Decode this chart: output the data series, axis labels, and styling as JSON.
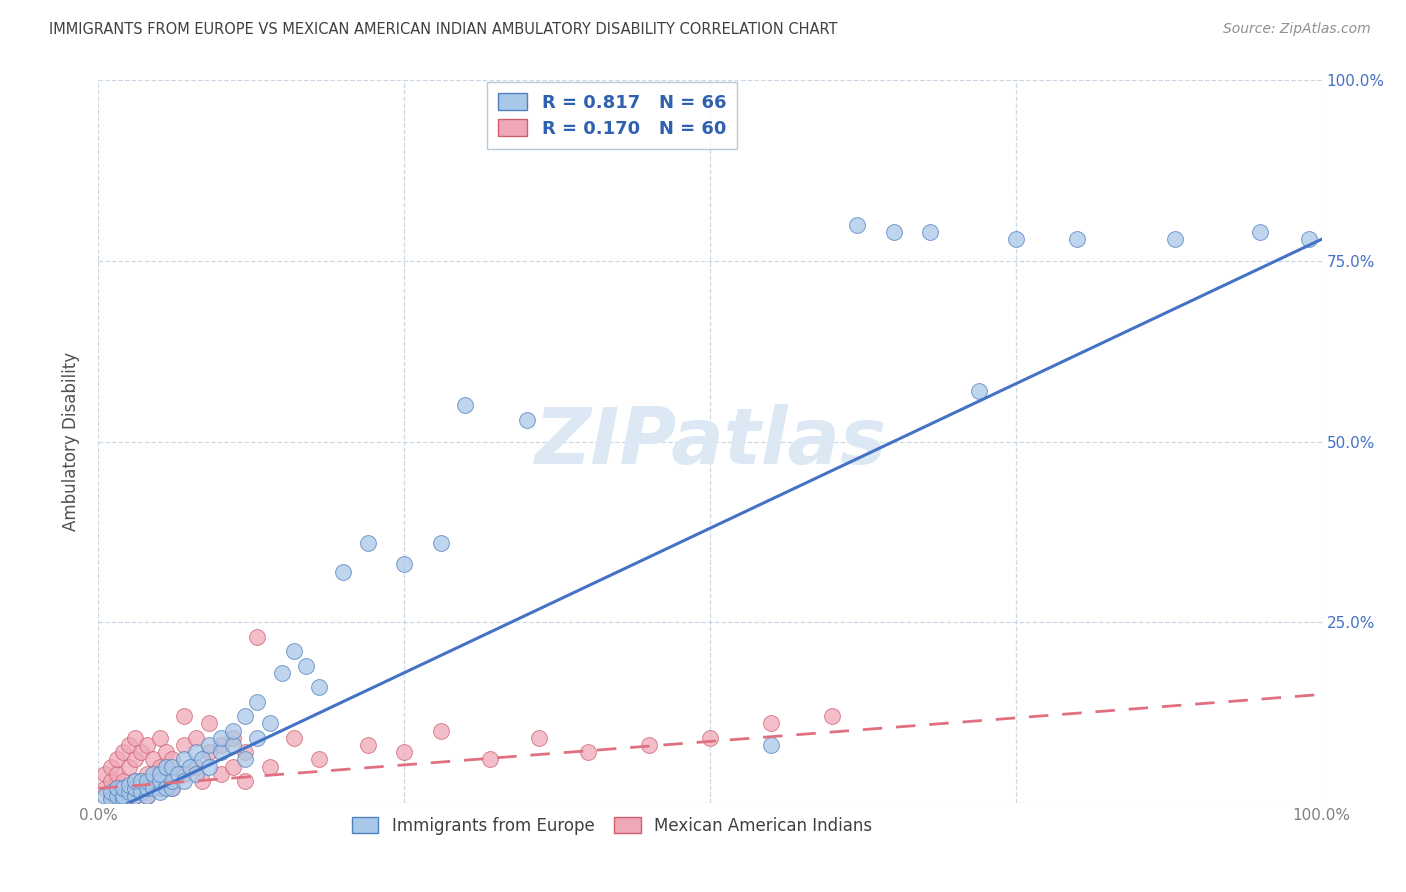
{
  "title": "IMMIGRANTS FROM EUROPE VS MEXICAN AMERICAN INDIAN AMBULATORY DISABILITY CORRELATION CHART",
  "source": "Source: ZipAtlas.com",
  "ylabel": "Ambulatory Disability",
  "xlim": [
    0,
    100
  ],
  "ylim": [
    0,
    100
  ],
  "xticks": [
    0,
    25,
    50,
    75,
    100
  ],
  "yticks": [
    0,
    25,
    50,
    75,
    100
  ],
  "xticklabels": [
    "0.0%",
    "",
    "",
    "",
    "100.0%"
  ],
  "left_yticklabels": [
    "",
    "",
    "",
    "",
    ""
  ],
  "right_yticklabels": [
    "",
    "25.0%",
    "50.0%",
    "75.0%",
    "100.0%"
  ],
  "legend_labels": [
    "Immigrants from Europe",
    "Mexican American Indians"
  ],
  "r_blue": 0.817,
  "n_blue": 66,
  "r_pink": 0.17,
  "n_pink": 60,
  "blue_color": "#A8C8E8",
  "pink_color": "#F0A8B8",
  "blue_edge_color": "#5080C0",
  "pink_edge_color": "#D06070",
  "blue_line_color": "#4472C4",
  "pink_line_color": "#E07080",
  "title_color": "#404040",
  "source_color": "#909090",
  "axis_label_color": "#505050",
  "tick_color": "#808080",
  "grid_color": "#C8D4E4",
  "legend_r_color": "#3060B0",
  "watermark_color": "#DCE8F4",
  "blue_scatter_x": [
    0.5,
    1,
    1,
    1.5,
    1.5,
    2,
    2,
    2,
    2.5,
    2.5,
    3,
    3,
    3,
    3.5,
    3.5,
    4,
    4,
    4,
    4.5,
    4.5,
    5,
    5,
    5,
    5.5,
    5.5,
    6,
    6,
    6,
    6.5,
    7,
    7,
    7.5,
    8,
    8,
    8.5,
    9,
    9,
    10,
    10,
    11,
    11,
    12,
    12,
    13,
    13,
    14,
    15,
    16,
    17,
    18,
    20,
    22,
    25,
    28,
    30,
    35,
    55,
    62,
    65,
    68,
    72,
    75,
    80,
    88,
    95,
    99
  ],
  "blue_scatter_y": [
    1,
    0.5,
    1.5,
    1,
    2,
    0.5,
    1,
    2,
    1.5,
    2.5,
    1,
    2,
    3,
    1.5,
    3,
    1,
    2,
    3,
    2,
    4,
    1.5,
    3,
    4,
    2,
    5,
    2,
    3,
    5,
    4,
    3,
    6,
    5,
    4,
    7,
    6,
    5,
    8,
    7,
    9,
    8,
    10,
    6,
    12,
    9,
    14,
    11,
    18,
    21,
    19,
    16,
    32,
    36,
    33,
    36,
    55,
    53,
    8,
    80,
    79,
    79,
    57,
    78,
    78,
    78,
    79,
    78
  ],
  "pink_scatter_x": [
    0.5,
    0.5,
    1,
    1,
    1,
    1.5,
    1.5,
    1.5,
    2,
    2,
    2,
    2.5,
    2.5,
    2.5,
    3,
    3,
    3,
    3,
    3.5,
    3.5,
    4,
    4,
    4,
    4.5,
    4.5,
    5,
    5,
    5,
    5.5,
    5.5,
    6,
    6,
    7,
    7,
    7,
    8,
    8,
    8.5,
    9,
    9,
    10,
    10,
    11,
    11,
    12,
    12,
    13,
    14,
    16,
    18,
    22,
    25,
    28,
    32,
    36,
    40,
    45,
    50,
    55,
    60
  ],
  "pink_scatter_y": [
    2,
    4,
    1,
    3,
    5,
    2,
    4,
    6,
    1,
    3,
    7,
    2,
    5,
    8,
    1,
    3,
    6,
    9,
    2,
    7,
    1,
    4,
    8,
    3,
    6,
    2,
    5,
    9,
    3,
    7,
    2,
    6,
    4,
    8,
    12,
    5,
    9,
    3,
    7,
    11,
    4,
    8,
    5,
    9,
    3,
    7,
    23,
    5,
    9,
    6,
    8,
    7,
    10,
    6,
    9,
    7,
    8,
    9,
    11,
    12
  ],
  "blue_line_x": [
    0,
    100
  ],
  "blue_line_y": [
    -2,
    78
  ],
  "pink_line_x": [
    0,
    100
  ],
  "pink_line_y": [
    2,
    15
  ]
}
